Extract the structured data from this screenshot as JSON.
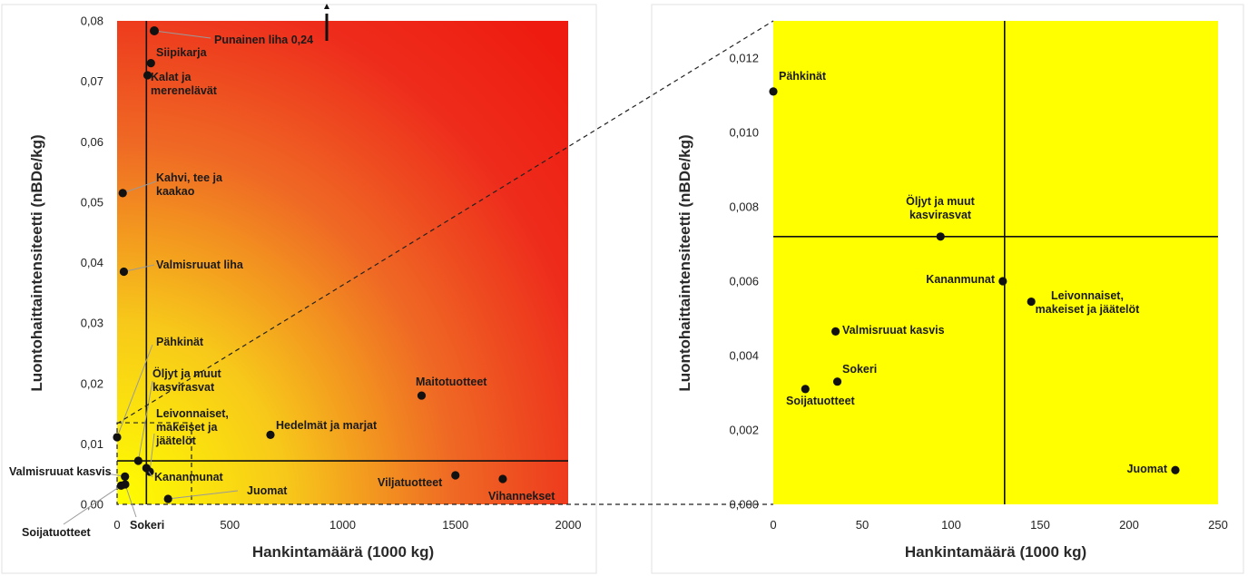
{
  "chart_data": [
    {
      "type": "scatter",
      "title": "",
      "xlabel": "Hankintamäärä (1000 kg)",
      "ylabel": "Luontohaittaintensiteetti (nBDe/kg)",
      "xlim": [
        0,
        2000
      ],
      "ylim": [
        0,
        0.08
      ],
      "xticks": [
        "0",
        "500",
        "1000",
        "1500",
        "2000"
      ],
      "yticks": [
        "0,00",
        "0,01",
        "0,02",
        "0,03",
        "0,04",
        "0,05",
        "0,06",
        "0,07",
        "0,08"
      ],
      "background": "gradient yellow (low) to red (high)",
      "reference_lines": {
        "x": 130,
        "y": 0.0072
      },
      "zoom_box": {
        "x": [
          0,
          330
        ],
        "y": [
          0,
          0.0135
        ]
      },
      "annotation": {
        "text": "Punainen liha 0,24",
        "arrow": "off-scale upward"
      },
      "points": [
        {
          "label": "Siipikarja",
          "x": 150,
          "y": 0.073
        },
        {
          "label": "Kalat ja merenelävät",
          "x": 135,
          "y": 0.071
        },
        {
          "label": "Kahvi, tee ja kaakao",
          "x": 25,
          "y": 0.0515
        },
        {
          "label": "Valmisruuat liha",
          "x": 30,
          "y": 0.0385
        },
        {
          "label": "Pähkinät",
          "x": 0,
          "y": 0.0111
        },
        {
          "label": "Öljyt ja muut kasvirasvat",
          "x": 94,
          "y": 0.0072
        },
        {
          "label": "Leivonnaiset, makeiset ja jäätelöt",
          "x": 145,
          "y": 0.0054
        },
        {
          "label": "Kananmunat",
          "x": 130,
          "y": 0.006
        },
        {
          "label": "Valmisruuat kasvis",
          "x": 35,
          "y": 0.0046
        },
        {
          "label": "Soijatuotteet",
          "x": 18,
          "y": 0.0031
        },
        {
          "label": "Sokeri",
          "x": 36,
          "y": 0.0033
        },
        {
          "label": "Juomat",
          "x": 226,
          "y": 0.0009
        },
        {
          "label": "Hedelmät ja marjat",
          "x": 680,
          "y": 0.0115
        },
        {
          "label": "Maitotuotteet",
          "x": 1350,
          "y": 0.018
        },
        {
          "label": "Viljatuotteet",
          "x": 1500,
          "y": 0.0048
        },
        {
          "label": "Vihannekset",
          "x": 1710,
          "y": 0.0042
        }
      ]
    },
    {
      "type": "scatter",
      "title": "",
      "xlabel": "Hankintamäärä (1000 kg)",
      "ylabel": "Luontohaittaintensiteetti (nBDe/kg)",
      "xlim": [
        0,
        250
      ],
      "ylim": [
        0,
        0.013
      ],
      "xticks": [
        "0",
        "50",
        "100",
        "150",
        "200",
        "250"
      ],
      "yticks": [
        "0,000",
        "0,002",
        "0,004",
        "0,006",
        "0,008",
        "0,010",
        "0,012"
      ],
      "background": "yellow",
      "reference_lines": {
        "x": 130,
        "y": 0.0072
      },
      "points": [
        {
          "label": "Pähkinät",
          "x": 0,
          "y": 0.0111
        },
        {
          "label": "Öljyt ja muut kasvirasvat",
          "x": 94,
          "y": 0.0072
        },
        {
          "label": "Kananmunat",
          "x": 129,
          "y": 0.006
        },
        {
          "label": "Leivonnaiset, makeiset ja jäätelöt",
          "x": 145,
          "y": 0.00545
        },
        {
          "label": "Valmisruuat kasvis",
          "x": 35,
          "y": 0.00465
        },
        {
          "label": "Sokeri",
          "x": 36,
          "y": 0.0033
        },
        {
          "label": "Soijatuotteet",
          "x": 18,
          "y": 0.0031
        },
        {
          "label": "Juomat",
          "x": 226,
          "y": 0.00092
        }
      ]
    }
  ]
}
